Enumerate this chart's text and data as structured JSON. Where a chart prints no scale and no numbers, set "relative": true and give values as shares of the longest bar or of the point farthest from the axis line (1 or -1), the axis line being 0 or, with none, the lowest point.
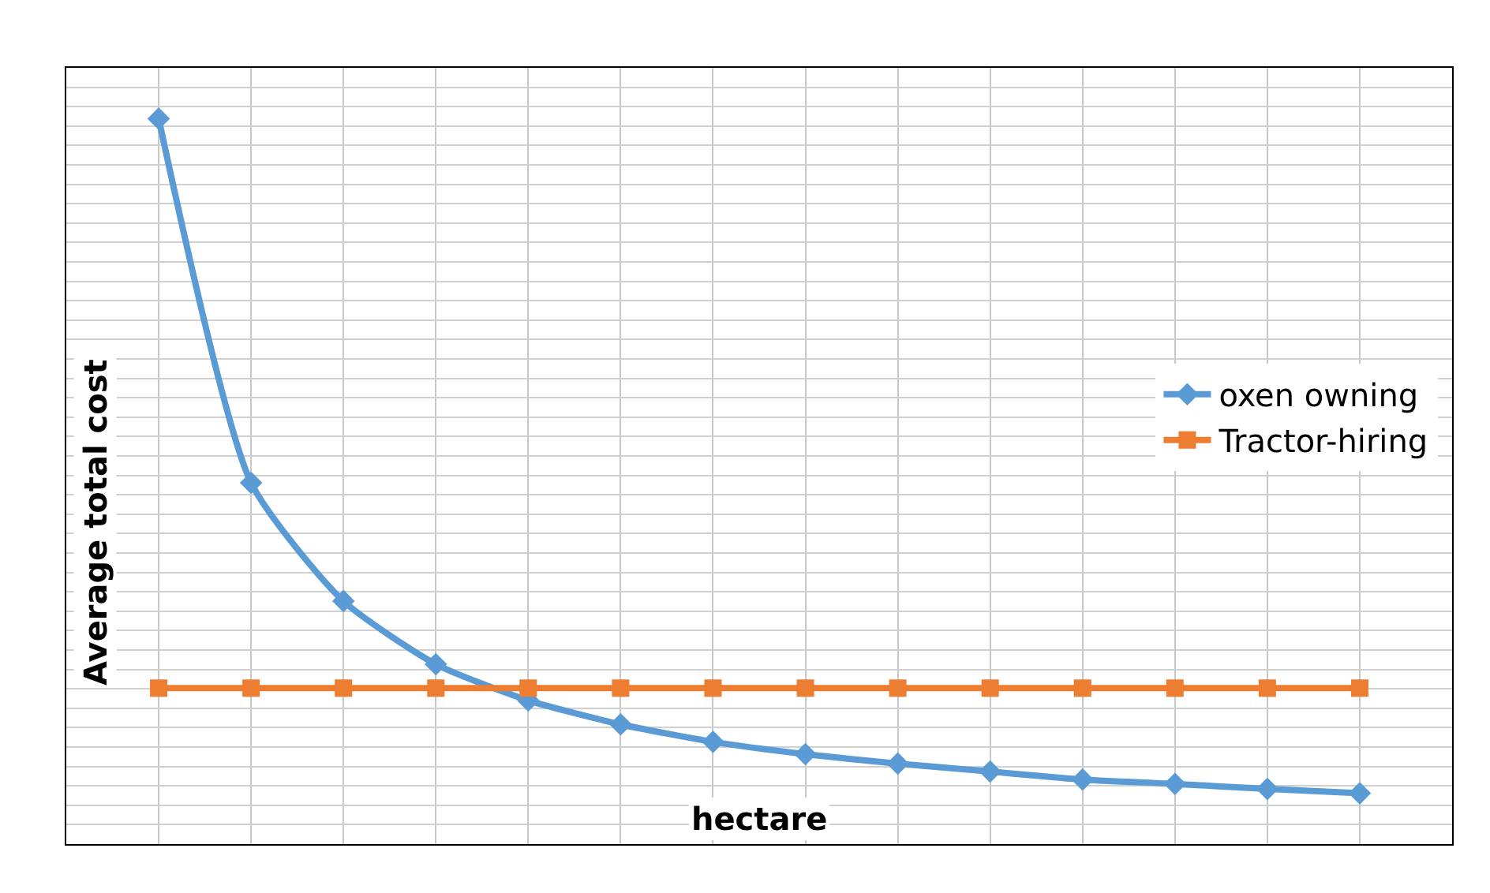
{
  "chart_data": {
    "type": "line",
    "relative": true,
    "xlabel": "hectare",
    "ylabel": "Average total cost",
    "categories": [
      null,
      null,
      null,
      null,
      null,
      null,
      null,
      null,
      null,
      null,
      null,
      null,
      null,
      null
    ],
    "series": [
      {
        "name": "oxen owning",
        "color": "#5b9bd5",
        "marker": "diamond",
        "values": [
          1,
          0.498,
          0.335,
          0.248,
          0.198,
          0.165,
          0.141,
          0.124,
          0.111,
          0.1,
          0.089,
          0.083,
          0.076,
          0.07
        ]
      },
      {
        "name": "Tractor-hiring",
        "color": "#ed7d31",
        "marker": "square",
        "values": [
          0.215,
          0.215,
          0.215,
          0.215,
          0.215,
          0.215,
          0.215,
          0.215,
          0.215,
          0.215,
          0.215,
          0.215,
          0.215,
          0.215
        ]
      }
    ],
    "grid": true,
    "legend": "right",
    "line_style": "solid"
  }
}
